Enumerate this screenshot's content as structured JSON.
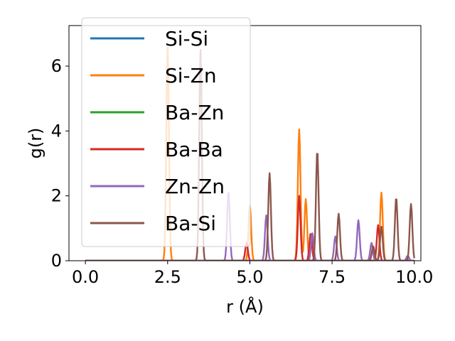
{
  "chart_data": {
    "type": "line",
    "xlabel": "r (Å)",
    "ylabel": "g(r)",
    "xlim": [
      -0.5,
      10.2
    ],
    "ylim": [
      0,
      7.25
    ],
    "xticks": [
      "0.0",
      "2.5",
      "5.0",
      "7.5",
      "10.0"
    ],
    "yticks": [
      "0",
      "2",
      "4",
      "6"
    ],
    "grid": false,
    "legend_position": "upper-left",
    "series": [
      {
        "name": "Si-Si",
        "color": "#1f77b4",
        "peaks": []
      },
      {
        "name": "Si-Zn",
        "color": "#ff7f0e",
        "peaks": [
          [
            2.5,
            6.6
          ],
          [
            5.0,
            1.7
          ],
          [
            6.5,
            4.05
          ],
          [
            6.7,
            1.9
          ],
          [
            9.0,
            2.1
          ]
        ]
      },
      {
        "name": "Ba-Zn",
        "color": "#2ca02c",
        "peaks": []
      },
      {
        "name": "Ba-Ba",
        "color": "#d62728",
        "peaks": [
          [
            4.9,
            0.55
          ],
          [
            6.5,
            2.0
          ],
          [
            6.85,
            0.85
          ],
          [
            8.9,
            1.1
          ]
        ]
      },
      {
        "name": "Zn-Zn",
        "color": "#9467bd",
        "peaks": [
          [
            4.35,
            2.15
          ],
          [
            5.5,
            1.4
          ],
          [
            6.9,
            0.85
          ],
          [
            7.6,
            0.75
          ],
          [
            8.3,
            1.25
          ],
          [
            8.7,
            0.55
          ],
          [
            9.8,
            0.15
          ]
        ]
      },
      {
        "name": "Ba-Si",
        "color": "#8c564b",
        "peaks": [
          [
            3.5,
            6.5
          ],
          [
            5.6,
            2.7
          ],
          [
            7.05,
            3.4
          ],
          [
            7.7,
            1.45
          ],
          [
            8.75,
            0.45
          ],
          [
            9.0,
            1.05
          ],
          [
            9.45,
            1.95
          ],
          [
            9.9,
            1.75
          ]
        ]
      }
    ]
  }
}
